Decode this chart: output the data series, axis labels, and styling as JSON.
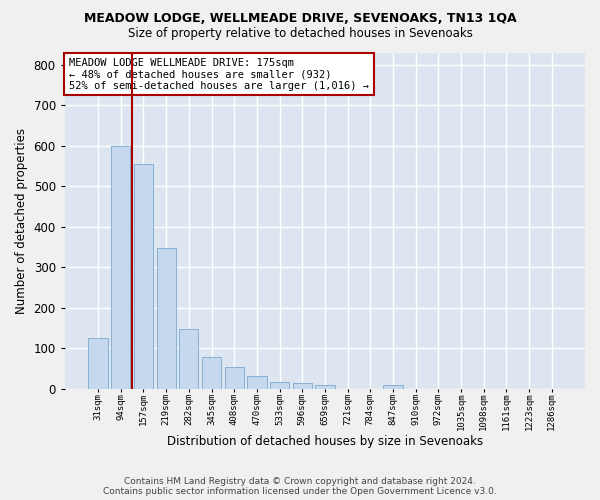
{
  "title": "MEADOW LODGE, WELLMEADE DRIVE, SEVENOAKS, TN13 1QA",
  "subtitle": "Size of property relative to detached houses in Sevenoaks",
  "xlabel": "Distribution of detached houses by size in Sevenoaks",
  "ylabel": "Number of detached properties",
  "bar_color": "#c5d8ed",
  "bar_edge_color": "#7aaacf",
  "bg_color": "#dde5f0",
  "grid_color": "#ffffff",
  "fig_bg": "#f0f0f0",
  "categories": [
    "31sqm",
    "94sqm",
    "157sqm",
    "219sqm",
    "282sqm",
    "345sqm",
    "408sqm",
    "470sqm",
    "533sqm",
    "596sqm",
    "659sqm",
    "721sqm",
    "784sqm",
    "847sqm",
    "910sqm",
    "972sqm",
    "1035sqm",
    "1098sqm",
    "1161sqm",
    "1223sqm",
    "1286sqm"
  ],
  "values": [
    125,
    600,
    555,
    347,
    148,
    77,
    52,
    30,
    15,
    13,
    8,
    0,
    0,
    8,
    0,
    0,
    0,
    0,
    0,
    0,
    0
  ],
  "vline_x": 1.5,
  "vline_color": "#aa0000",
  "annotation_text": "MEADOW LODGE WELLMEADE DRIVE: 175sqm\n← 48% of detached houses are smaller (932)\n52% of semi-detached houses are larger (1,016) →",
  "anno_bg": "#ffffff",
  "anno_edge": "#aa0000",
  "footnote_line1": "Contains HM Land Registry data © Crown copyright and database right 2024.",
  "footnote_line2": "Contains public sector information licensed under the Open Government Licence v3.0.",
  "ylim": [
    0,
    830
  ],
  "yticks": [
    0,
    100,
    200,
    300,
    400,
    500,
    600,
    700,
    800
  ]
}
